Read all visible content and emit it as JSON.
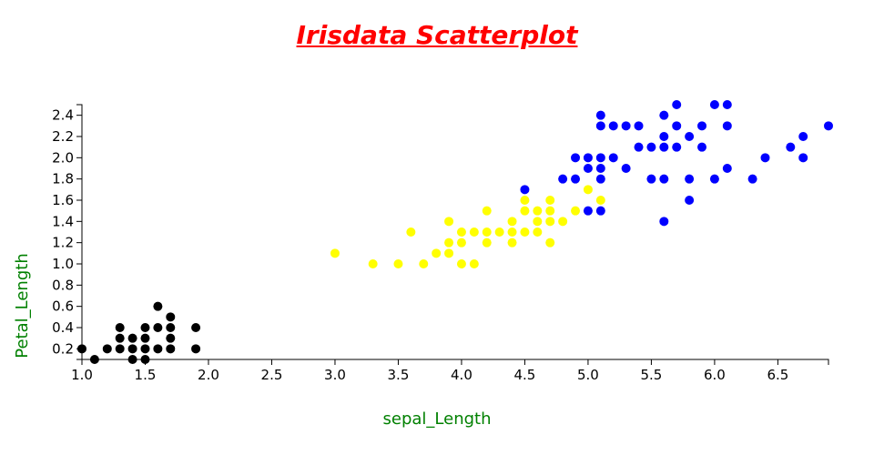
{
  "chart_data": {
    "type": "scatter",
    "title": "Irisdata Scatterplot",
    "xlabel": "sepal_Length",
    "ylabel": "Petal_Length",
    "xlim": [
      1.0,
      6.9
    ],
    "ylim": [
      0.1,
      2.5
    ],
    "x_ticks": [
      "1.0",
      "1.5",
      "2.0",
      "2.5",
      "3.0",
      "3.5",
      "4.0",
      "4.5",
      "5.0",
      "5.5",
      "6.0",
      "6.5"
    ],
    "y_ticks": [
      "0.2",
      "0.4",
      "0.6",
      "0.8",
      "1.0",
      "1.2",
      "1.4",
      "1.6",
      "1.8",
      "2.0",
      "2.2",
      "2.4"
    ],
    "grid": false,
    "series": [
      {
        "color": "#000000",
        "points": [
          [
            1.0,
            0.2
          ],
          [
            1.1,
            0.1
          ],
          [
            1.2,
            0.2
          ],
          [
            1.3,
            0.2
          ],
          [
            1.3,
            0.3
          ],
          [
            1.3,
            0.4
          ],
          [
            1.4,
            0.1
          ],
          [
            1.4,
            0.2
          ],
          [
            1.4,
            0.3
          ],
          [
            1.5,
            0.1
          ],
          [
            1.5,
            0.2
          ],
          [
            1.5,
            0.3
          ],
          [
            1.5,
            0.4
          ],
          [
            1.6,
            0.2
          ],
          [
            1.6,
            0.4
          ],
          [
            1.6,
            0.6
          ],
          [
            1.7,
            0.2
          ],
          [
            1.7,
            0.3
          ],
          [
            1.7,
            0.4
          ],
          [
            1.7,
            0.5
          ],
          [
            1.9,
            0.2
          ],
          [
            1.9,
            0.4
          ]
        ]
      },
      {
        "color": "#ffff00",
        "points": [
          [
            3.0,
            1.1
          ],
          [
            3.3,
            1.0
          ],
          [
            3.5,
            1.0
          ],
          [
            3.6,
            1.3
          ],
          [
            3.7,
            1.0
          ],
          [
            3.8,
            1.1
          ],
          [
            3.9,
            1.1
          ],
          [
            3.9,
            1.2
          ],
          [
            3.9,
            1.4
          ],
          [
            4.0,
            1.0
          ],
          [
            4.0,
            1.2
          ],
          [
            4.0,
            1.3
          ],
          [
            4.1,
            1.0
          ],
          [
            4.1,
            1.3
          ],
          [
            4.2,
            1.2
          ],
          [
            4.2,
            1.3
          ],
          [
            4.2,
            1.5
          ],
          [
            4.3,
            1.3
          ],
          [
            4.4,
            1.2
          ],
          [
            4.4,
            1.3
          ],
          [
            4.4,
            1.4
          ],
          [
            4.5,
            1.3
          ],
          [
            4.5,
            1.5
          ],
          [
            4.5,
            1.6
          ],
          [
            4.6,
            1.3
          ],
          [
            4.6,
            1.4
          ],
          [
            4.6,
            1.5
          ],
          [
            4.7,
            1.2
          ],
          [
            4.7,
            1.4
          ],
          [
            4.7,
            1.5
          ],
          [
            4.7,
            1.6
          ],
          [
            4.8,
            1.4
          ],
          [
            4.9,
            1.5
          ],
          [
            5.0,
            1.7
          ],
          [
            5.1,
            1.6
          ]
        ]
      },
      {
        "color": "#0000ff",
        "points": [
          [
            4.5,
            1.7
          ],
          [
            4.8,
            1.8
          ],
          [
            4.9,
            1.8
          ],
          [
            4.9,
            2.0
          ],
          [
            5.0,
            1.5
          ],
          [
            5.0,
            1.9
          ],
          [
            5.0,
            2.0
          ],
          [
            5.1,
            1.5
          ],
          [
            5.1,
            1.8
          ],
          [
            5.1,
            1.9
          ],
          [
            5.1,
            2.0
          ],
          [
            5.1,
            2.3
          ],
          [
            5.1,
            2.4
          ],
          [
            5.2,
            2.0
          ],
          [
            5.2,
            2.3
          ],
          [
            5.3,
            1.9
          ],
          [
            5.3,
            2.3
          ],
          [
            5.4,
            2.1
          ],
          [
            5.4,
            2.3
          ],
          [
            5.5,
            1.8
          ],
          [
            5.5,
            2.1
          ],
          [
            5.6,
            1.4
          ],
          [
            5.6,
            1.8
          ],
          [
            5.6,
            2.1
          ],
          [
            5.6,
            2.2
          ],
          [
            5.6,
            2.4
          ],
          [
            5.7,
            2.1
          ],
          [
            5.7,
            2.3
          ],
          [
            5.7,
            2.5
          ],
          [
            5.8,
            1.6
          ],
          [
            5.8,
            1.8
          ],
          [
            5.8,
            2.2
          ],
          [
            5.9,
            2.1
          ],
          [
            5.9,
            2.3
          ],
          [
            6.0,
            1.8
          ],
          [
            6.0,
            2.5
          ],
          [
            6.1,
            1.9
          ],
          [
            6.1,
            2.3
          ],
          [
            6.1,
            2.5
          ],
          [
            6.3,
            1.8
          ],
          [
            6.4,
            2.0
          ],
          [
            6.6,
            2.1
          ],
          [
            6.7,
            2.0
          ],
          [
            6.7,
            2.2
          ],
          [
            6.9,
            2.3
          ]
        ]
      }
    ]
  }
}
